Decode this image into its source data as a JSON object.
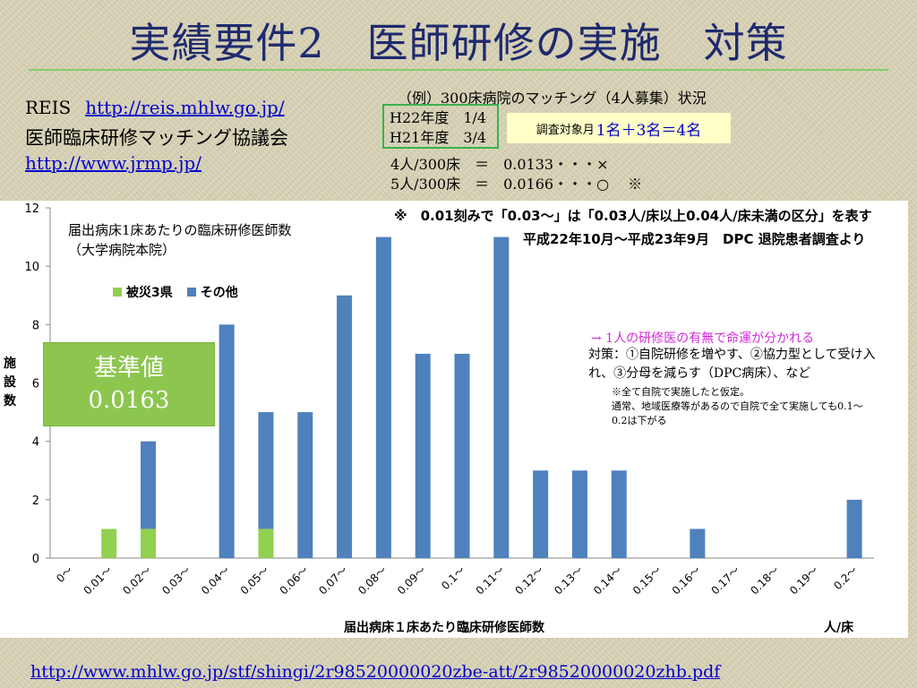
{
  "slide": {
    "title": "実績要件2　医師研修の実施　対策",
    "reis_label": "REIS",
    "reis_url": "http://reis.mhlw.go.jp/",
    "association": "医師臨床研修マッチング協議会",
    "jrmp_url": "http://www.jrmp.jp/",
    "example": {
      "title": "（例）300床病院のマッチング（4人募集）状況",
      "rows": [
        "H22年度　1/4",
        "H21年度　3/4"
      ],
      "target_label": "調査対象月",
      "target_value": "1名＋3名＝4名",
      "ratio1": "4人/300床　＝　0.0133・・・×",
      "ratio2": "5人/300床　＝　0.0166・・・○　 ※"
    },
    "baseline": {
      "line1": "基準値",
      "line2": "0.0163"
    },
    "notes": {
      "arrow_note": "→ 1人の研修医の有無で命運が分かれる",
      "measures": "対策：①自院研修を増やす、②協力型として受け入れ、③分母を減らす（DPC病床）、など",
      "small_line1": "※全て自院で実施したと仮定。",
      "small_line2": "通常、地域医療等があるので自院で全て実施しても0.1～0.2は下がる"
    },
    "footer_url": "http://www.mhlw.go.jp/stf/shingi/2r98520000020zbe-att/2r98520000020zhb.pdf"
  },
  "chart_data": {
    "type": "bar",
    "stacked": true,
    "title": "届出病床1床あたりの臨床研修医師数\n（大学病院本院）",
    "annotation1": "※　0.01刻みで「0.03～」は「0.03人/床以上0.04人/床未満の区分」を表す",
    "annotation2": "平成22年10月～平成23年9月　DPC 退院患者調査より",
    "ylabel": "施設数",
    "xlabel": "届出病床１床あたり臨床研修医師数",
    "unit_label": "人/床",
    "ylim": [
      0,
      12
    ],
    "yticks": [
      0,
      2,
      4,
      6,
      8,
      10,
      12
    ],
    "categories": [
      "0～",
      "0.01～",
      "0.02～",
      "0.03～",
      "0.04～",
      "0.05～",
      "0.06～",
      "0.07～",
      "0.08～",
      "0.09～",
      "0.1～",
      "0.11～",
      "0.12～",
      "0.13～",
      "0.14～",
      "0.15～",
      "0.16～",
      "0.17～",
      "0.18～",
      "0.19～",
      "0.2～"
    ],
    "series": [
      {
        "name": "被災3県",
        "color": "#92d050",
        "values": [
          0,
          1,
          1,
          0,
          0,
          1,
          0,
          0,
          0,
          0,
          0,
          0,
          0,
          0,
          0,
          0,
          0,
          0,
          0,
          0,
          0
        ]
      },
      {
        "name": "その他",
        "color": "#4f81bd",
        "values": [
          0,
          0,
          3,
          0,
          8,
          4,
          5,
          9,
          11,
          7,
          7,
          11,
          3,
          3,
          3,
          0,
          1,
          0,
          0,
          0,
          2
        ]
      }
    ],
    "grid": false,
    "legend": "top-left"
  }
}
